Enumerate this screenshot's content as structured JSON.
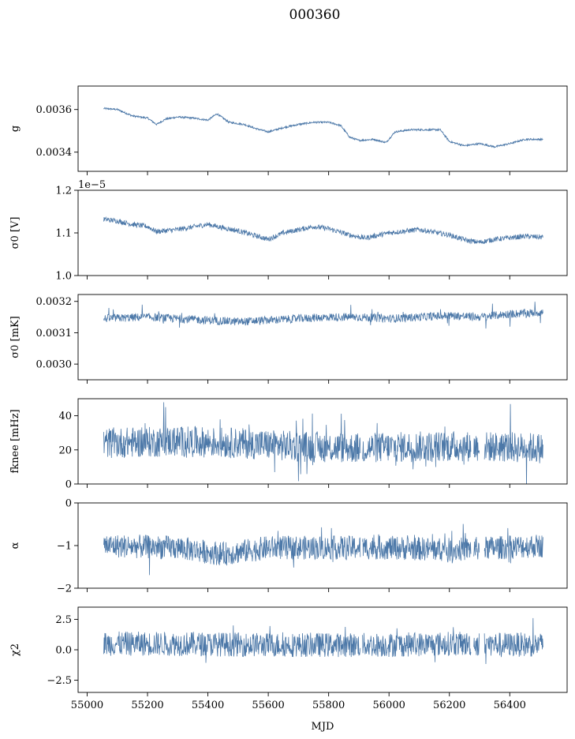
{
  "chart_data": {
    "type": "line",
    "title": "000360",
    "xlabel": "MJD",
    "xlim": [
      54970,
      56590
    ],
    "xticks": [
      "55000",
      "55200",
      "55400",
      "55600",
      "55800",
      "56000",
      "56200",
      "56400"
    ],
    "color": "#4c78a8",
    "panels": [
      {
        "key": "g",
        "ylabel_tex": "g",
        "ylim": [
          0.00331,
          0.00371
        ],
        "yticks": [
          0.0034,
          0.0036
        ],
        "ytick_labels": [
          "0.0034",
          "0.0036"
        ],
        "offset": "",
        "show_xlabels": false,
        "trend": [
          [
            55055,
            0.003605
          ],
          [
            55100,
            0.0036
          ],
          [
            55150,
            0.00357
          ],
          [
            55200,
            0.00356
          ],
          [
            55230,
            0.00353
          ],
          [
            55260,
            0.003555
          ],
          [
            55300,
            0.003565
          ],
          [
            55350,
            0.00356
          ],
          [
            55400,
            0.00355
          ],
          [
            55430,
            0.00358
          ],
          [
            55470,
            0.00354
          ],
          [
            55520,
            0.00353
          ],
          [
            55560,
            0.00351
          ],
          [
            55600,
            0.003495
          ],
          [
            55650,
            0.003515
          ],
          [
            55700,
            0.00353
          ],
          [
            55750,
            0.00354
          ],
          [
            55800,
            0.00354
          ],
          [
            55840,
            0.003525
          ],
          [
            55870,
            0.00347
          ],
          [
            55900,
            0.003455
          ],
          [
            55950,
            0.00346
          ],
          [
            55990,
            0.003445
          ],
          [
            56020,
            0.003495
          ],
          [
            56070,
            0.003505
          ],
          [
            56120,
            0.003505
          ],
          [
            56170,
            0.003505
          ],
          [
            56200,
            0.00345
          ],
          [
            56250,
            0.00343
          ],
          [
            56300,
            0.00344
          ],
          [
            56350,
            0.003425
          ],
          [
            56400,
            0.00344
          ],
          [
            56450,
            0.00346
          ],
          [
            56510,
            0.00346
          ]
        ],
        "noise": 4e-06,
        "spike": 0
      },
      {
        "key": "sigma0_v",
        "ylabel_tex": "σ0 [V]",
        "ylim": [
          1.0,
          1.2
        ],
        "yticks": [
          1.0,
          1.1,
          1.2
        ],
        "ytick_labels": [
          "1.0",
          "1.1",
          "1.2"
        ],
        "offset": "1e−5",
        "show_xlabels": false,
        "trend": [
          [
            55055,
            1.132
          ],
          [
            55100,
            1.128
          ],
          [
            55150,
            1.12
          ],
          [
            55200,
            1.115
          ],
          [
            55230,
            1.103
          ],
          [
            55300,
            1.108
          ],
          [
            55400,
            1.12
          ],
          [
            55450,
            1.112
          ],
          [
            55500,
            1.105
          ],
          [
            55600,
            1.085
          ],
          [
            55650,
            1.1
          ],
          [
            55750,
            1.115
          ],
          [
            55800,
            1.11
          ],
          [
            55870,
            1.095
          ],
          [
            55920,
            1.088
          ],
          [
            56000,
            1.1
          ],
          [
            56100,
            1.108
          ],
          [
            56200,
            1.095
          ],
          [
            56260,
            1.082
          ],
          [
            56300,
            1.078
          ],
          [
            56350,
            1.085
          ],
          [
            56450,
            1.092
          ],
          [
            56510,
            1.09
          ]
        ],
        "noise": 0.006,
        "spike": 0
      },
      {
        "key": "sigma0_mk",
        "ylabel_tex": "σ0 [mK]",
        "ylim": [
          0.00295,
          0.003222
        ],
        "yticks": [
          0.003,
          0.0031,
          0.0032
        ],
        "ytick_labels": [
          "0.0030",
          "0.0031",
          "0.0032"
        ],
        "offset": "",
        "show_xlabels": false,
        "trend": [
          [
            55055,
            0.003145
          ],
          [
            55200,
            0.00315
          ],
          [
            55300,
            0.003145
          ],
          [
            55400,
            0.00314
          ],
          [
            55500,
            0.003135
          ],
          [
            55600,
            0.00314
          ],
          [
            55700,
            0.003145
          ],
          [
            55800,
            0.00315
          ],
          [
            55900,
            0.00315
          ],
          [
            56000,
            0.003145
          ],
          [
            56100,
            0.00315
          ],
          [
            56200,
            0.003155
          ],
          [
            56300,
            0.00315
          ],
          [
            56400,
            0.00316
          ],
          [
            56510,
            0.003165
          ]
        ],
        "noise": 1.3e-05,
        "spike": 4e-05
      },
      {
        "key": "fknee",
        "ylabel_tex": "fknee [mHz]",
        "ylim": [
          0,
          50
        ],
        "yticks": [
          0,
          20,
          40
        ],
        "ytick_labels": [
          "0",
          "20",
          "40"
        ],
        "offset": "",
        "show_xlabels": false,
        "trend": [
          [
            55055,
            24
          ],
          [
            55300,
            25
          ],
          [
            55500,
            24
          ],
          [
            55700,
            22
          ],
          [
            55900,
            21
          ],
          [
            56100,
            22
          ],
          [
            56300,
            22
          ],
          [
            56510,
            21
          ]
        ],
        "noise": 9,
        "spike": 18
      },
      {
        "key": "alpha",
        "ylabel_tex": "α",
        "ylim": [
          -2,
          0
        ],
        "yticks": [
          -2,
          -1,
          0
        ],
        "ytick_labels": [
          "−2",
          "−1",
          "0"
        ],
        "offset": "",
        "show_xlabels": false,
        "trend": [
          [
            55055,
            -1.0
          ],
          [
            55300,
            -1.05
          ],
          [
            55450,
            -1.2
          ],
          [
            55600,
            -1.05
          ],
          [
            55800,
            -1.05
          ],
          [
            56000,
            -1.05
          ],
          [
            56200,
            -1.1
          ],
          [
            56510,
            -1.0
          ]
        ],
        "noise": 0.28,
        "spike": 0.45
      },
      {
        "key": "chi2",
        "ylabel_tex": "χ2",
        "ylim": [
          -3.5,
          3.5
        ],
        "yticks": [
          -2.5,
          0.0,
          2.5
        ],
        "ytick_labels": [
          "−2.5",
          "0.0",
          "2.5"
        ],
        "offset": "",
        "show_xlabels": true,
        "trend": [
          [
            55055,
            0.5
          ],
          [
            55300,
            0.5
          ],
          [
            55600,
            0.4
          ],
          [
            55800,
            0.4
          ],
          [
            56000,
            0.4
          ],
          [
            56200,
            0.5
          ],
          [
            56510,
            0.4
          ]
        ],
        "noise": 1.0,
        "spike": 1.3
      }
    ]
  }
}
